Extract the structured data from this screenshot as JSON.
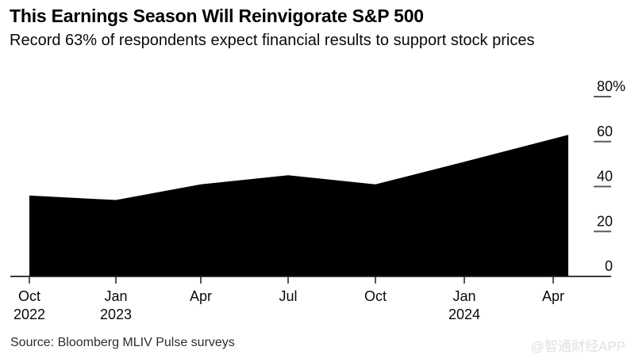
{
  "header": {
    "title": "This Earnings Season Will Reinvigorate S&P 500",
    "subtitle": "Record 63% of respondents expect financial results to support stock prices"
  },
  "chart_data": {
    "type": "area",
    "title": "This Earnings Season Will Reinvigorate S&P 500",
    "subtitle": "Record 63% of respondents expect financial results to support stock prices",
    "unit": "% of respondents",
    "x": [
      "Oct 2022",
      "Jan 2023",
      "Apr 2023",
      "Jul 2023",
      "Oct 2023",
      "Jan 2024",
      "Apr 2024"
    ],
    "values": [
      36,
      34,
      41,
      45,
      41,
      51,
      63
    ],
    "ylim": [
      0,
      80
    ],
    "yticks": [
      {
        "value": 0,
        "label": "0",
        "suffix": ""
      },
      {
        "value": 20,
        "label": "20",
        "suffix": ""
      },
      {
        "value": 40,
        "label": "40",
        "suffix": ""
      },
      {
        "value": 60,
        "label": "60",
        "suffix": ""
      },
      {
        "value": 80,
        "label": "80",
        "suffix": "%"
      }
    ],
    "xticks": [
      {
        "label": "Oct",
        "year": "2022"
      },
      {
        "label": "Jan",
        "year": "2023"
      },
      {
        "label": "Apr",
        "year": ""
      },
      {
        "label": "Jul",
        "year": ""
      },
      {
        "label": "Oct",
        "year": ""
      },
      {
        "label": "Jan",
        "year": "2024"
      },
      {
        "label": "Apr",
        "year": ""
      }
    ],
    "grid": false,
    "legend": false,
    "y_axis_position": "right",
    "fill_color": "#000000",
    "axis_color": "#1f1f1f",
    "tick_color": "#2b2b2b",
    "y_dash_color": "#5c5c5c",
    "background": "#ffffff"
  },
  "footer": {
    "source": "Source: Bloomberg MLIV Pulse surveys",
    "watermark": "@智通财经APP"
  }
}
